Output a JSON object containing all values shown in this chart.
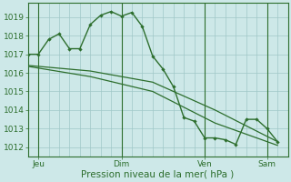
{
  "xlabel": "Pression niveau de la mer( hPa )",
  "bg_color": "#cde8e8",
  "grid_color": "#a0c8c8",
  "line_color": "#2d6e2d",
  "vline_color": "#4a7a4a",
  "ylim": [
    1011.5,
    1019.75
  ],
  "xlim": [
    0,
    25
  ],
  "yticks": [
    1012,
    1013,
    1014,
    1015,
    1016,
    1017,
    1018,
    1019
  ],
  "xtick_labels": [
    "Jeu",
    "Dim",
    "Ven",
    "Sam"
  ],
  "xtick_positions": [
    1,
    9,
    17,
    23
  ],
  "series1_x": [
    0,
    1,
    2,
    3,
    4,
    5,
    6,
    7,
    8,
    9,
    10,
    11,
    12,
    13,
    14,
    15,
    16,
    17,
    18,
    19,
    20,
    21,
    22,
    23,
    24
  ],
  "series1_y": [
    1017.0,
    1017.0,
    1017.8,
    1018.1,
    1017.3,
    1017.3,
    1018.6,
    1019.1,
    1019.3,
    1019.05,
    1019.25,
    1018.5,
    1016.9,
    1016.2,
    1015.25,
    1013.6,
    1013.4,
    1012.5,
    1012.5,
    1012.4,
    1012.15,
    1013.5,
    1013.5,
    1013.0,
    1012.3
  ],
  "series2_x": [
    0,
    6,
    12,
    18,
    24
  ],
  "series2_y": [
    1016.4,
    1016.1,
    1015.5,
    1014.0,
    1012.3
  ],
  "series3_x": [
    0,
    6,
    12,
    18,
    24
  ],
  "series3_y": [
    1016.35,
    1015.8,
    1015.0,
    1013.3,
    1012.1
  ],
  "vline_positions": [
    1,
    9,
    17,
    23
  ]
}
